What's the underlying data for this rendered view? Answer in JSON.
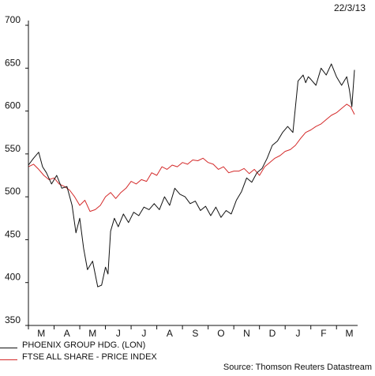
{
  "header": {
    "date": "22/3/13"
  },
  "footer": {
    "source": "Source: Thomson Reuters Datastream"
  },
  "colors": {
    "phoenix": "#111111",
    "ftse": "#d42a2a",
    "axis": "#111111"
  },
  "chart_data": {
    "type": "line",
    "title": "",
    "xlabel": "",
    "ylabel": "",
    "ylim": [
      350,
      700
    ],
    "yticks": [
      350,
      400,
      450,
      500,
      550,
      600,
      650,
      700
    ],
    "x_range_months": [
      0,
      12.7
    ],
    "xtick_labels": [
      "M",
      "A",
      "M",
      "J",
      "J",
      "A",
      "S",
      "O",
      "N",
      "D",
      "J",
      "F",
      "M"
    ],
    "legend_position": "bottom-left",
    "grid": false,
    "series": [
      {
        "name": "PHOENIX GROUP HDG. (LON)",
        "color": "#111111",
        "x": [
          0,
          0.2,
          0.4,
          0.55,
          0.7,
          0.9,
          1.1,
          1.3,
          1.5,
          1.7,
          1.85,
          2.0,
          2.15,
          2.3,
          2.5,
          2.7,
          2.85,
          3.0,
          3.1,
          3.2,
          3.35,
          3.5,
          3.7,
          3.9,
          4.1,
          4.3,
          4.5,
          4.7,
          4.9,
          5.1,
          5.3,
          5.5,
          5.7,
          5.9,
          6.1,
          6.3,
          6.5,
          6.7,
          6.9,
          7.1,
          7.3,
          7.5,
          7.7,
          7.9,
          8.1,
          8.3,
          8.5,
          8.7,
          8.9,
          9.1,
          9.3,
          9.5,
          9.7,
          9.9,
          10.1,
          10.3,
          10.5,
          10.7,
          10.8,
          10.9,
          11.0,
          11.2,
          11.4,
          11.6,
          11.8,
          12.0,
          12.2,
          12.4,
          12.5,
          12.6,
          12.7
        ],
        "values": [
          537,
          545,
          552,
          535,
          528,
          515,
          525,
          510,
          512,
          490,
          458,
          475,
          440,
          415,
          425,
          395,
          397,
          418,
          410,
          460,
          475,
          465,
          480,
          470,
          482,
          478,
          488,
          485,
          492,
          485,
          500,
          490,
          510,
          503,
          500,
          492,
          495,
          484,
          489,
          478,
          488,
          476,
          484,
          480,
          496,
          506,
          522,
          517,
          528,
          533,
          545,
          560,
          565,
          575,
          582,
          575,
          635,
          642,
          633,
          640,
          637,
          630,
          650,
          642,
          655,
          640,
          630,
          640,
          625,
          605,
          648
        ]
      },
      {
        "name": "FTSE ALL SHARE - PRICE INDEX",
        "color": "#d42a2a",
        "x": [
          0,
          0.2,
          0.4,
          0.6,
          0.8,
          1.0,
          1.2,
          1.4,
          1.6,
          1.8,
          2.0,
          2.2,
          2.4,
          2.6,
          2.8,
          3.0,
          3.2,
          3.4,
          3.6,
          3.8,
          4.0,
          4.2,
          4.4,
          4.6,
          4.8,
          5.0,
          5.2,
          5.4,
          5.6,
          5.8,
          6.0,
          6.2,
          6.4,
          6.6,
          6.8,
          7.0,
          7.2,
          7.4,
          7.6,
          7.8,
          8.0,
          8.2,
          8.4,
          8.6,
          8.8,
          9.0,
          9.2,
          9.4,
          9.6,
          9.8,
          10.0,
          10.2,
          10.4,
          10.6,
          10.8,
          11.0,
          11.2,
          11.4,
          11.6,
          11.8,
          12.0,
          12.2,
          12.4,
          12.55,
          12.7
        ],
        "values": [
          535,
          538,
          532,
          525,
          520,
          522,
          515,
          512,
          508,
          500,
          490,
          496,
          483,
          485,
          490,
          500,
          505,
          498,
          505,
          510,
          518,
          515,
          520,
          518,
          528,
          525,
          535,
          532,
          537,
          535,
          540,
          538,
          543,
          542,
          545,
          540,
          538,
          532,
          535,
          528,
          530,
          530,
          533,
          527,
          532,
          525,
          535,
          540,
          545,
          548,
          553,
          555,
          560,
          568,
          575,
          578,
          582,
          585,
          590,
          595,
          598,
          603,
          608,
          605,
          596
        ]
      }
    ]
  }
}
